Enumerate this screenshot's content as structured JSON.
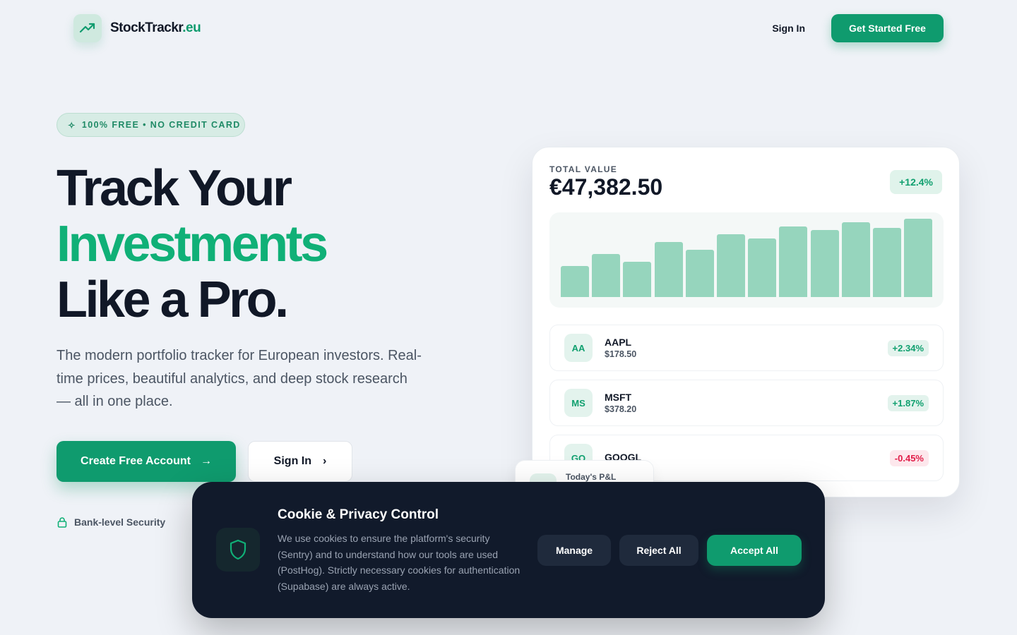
{
  "nav": {
    "brand": "StockTrackr",
    "brand_tld": ".eu",
    "sign_in": "Sign In",
    "cta": "Get Started Free"
  },
  "hero": {
    "badge": "100% FREE • NO CREDIT CARD",
    "title_1": "Track Your",
    "title_2": "Investments",
    "title_3": "Like a Pro.",
    "subtitle": "The modern portfolio tracker for European investors. Real-time prices, beautiful analytics, and deep stock research — all in one place.",
    "cta_primary": "Create Free Account",
    "cta_secondary": "Sign In",
    "feature_1": "Bank-level Security"
  },
  "card": {
    "label": "TOTAL VALUE",
    "value": "€47,382.50",
    "change": "+12.4%",
    "bars": [
      44,
      61,
      50,
      78,
      67,
      89,
      83,
      100,
      95,
      106,
      98,
      111
    ],
    "stocks": [
      {
        "avatar": "AA",
        "symbol": "AAPL",
        "price": "$178.50",
        "change": "+2.34%",
        "positive": true
      },
      {
        "avatar": "MS",
        "symbol": "MSFT",
        "price": "$378.20",
        "change": "+1.87%",
        "positive": true
      },
      {
        "avatar": "GO",
        "symbol": "GOOGL",
        "price": "",
        "change": "-0.45%",
        "positive": false
      }
    ],
    "pnl_label": "Today's P&L"
  },
  "cookie": {
    "title": "Cookie & Privacy Control",
    "text": "We use cookies to ensure the platform's security (Sentry) and to understand how our tools are used (PostHog). Strictly necessary cookies for authentication (Supabase) are always active.",
    "manage": "Manage",
    "reject": "Reject All",
    "accept": "Accept All"
  },
  "colors": {
    "accent": "#0f9b6e",
    "negative": "#e11d48",
    "dark": "#111a2b"
  }
}
